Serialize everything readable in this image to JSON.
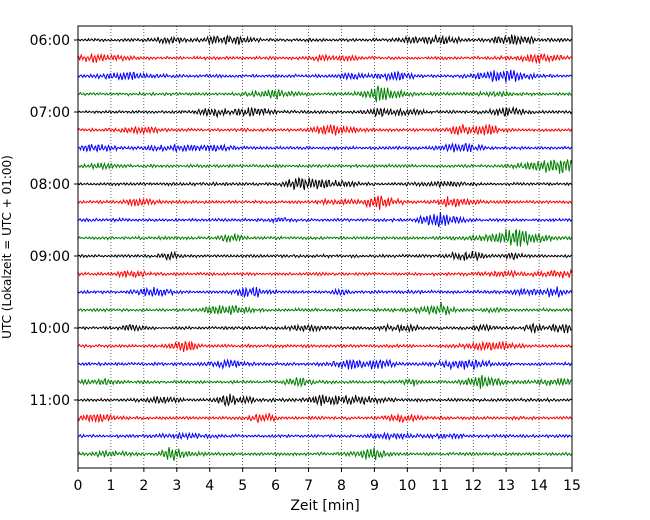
{
  "chart_data": {
    "type": "line",
    "title": "",
    "xlabel": "Zeit  [min]",
    "ylabel": "UTC (Lokalzeit = UTC + 01:00)",
    "xlim": [
      0,
      15
    ],
    "x_ticks": [
      0,
      1,
      2,
      3,
      4,
      5,
      6,
      7,
      8,
      9,
      10,
      11,
      12,
      13,
      14,
      15
    ],
    "y_tick_labels": [
      "06:00",
      "07:00",
      "08:00",
      "09:00",
      "10:00",
      "11:00"
    ],
    "rows_per_hour": 4,
    "row_count": 24,
    "trace_colors": [
      "#000000",
      "#ff0000",
      "#0000ff",
      "#008000"
    ],
    "grid": "vertical dotted",
    "legend": "none"
  }
}
